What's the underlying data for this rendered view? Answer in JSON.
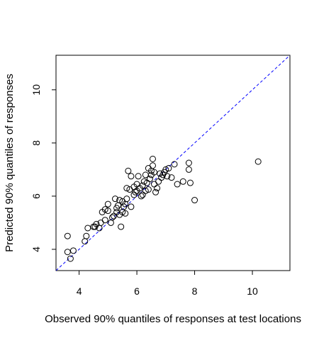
{
  "chart_data": {
    "type": "scatter",
    "title": "",
    "xlabel": "Observed 90% quantiles of responses at test locations",
    "ylabel": "Predicted 90% quantiles of responses",
    "xlim": [
      3.2,
      11.3
    ],
    "ylim": [
      3.2,
      11.3
    ],
    "xticks": [
      4,
      6,
      8,
      10
    ],
    "yticks": [
      4,
      6,
      8,
      10
    ],
    "grid": false,
    "reference_line": {
      "type": "identity",
      "slope": 1,
      "intercept": 0,
      "style": "dashed",
      "color": "#0000ff"
    },
    "colors": {
      "points": "#000000",
      "reference_line": "#0000ff",
      "frame": "#000000"
    },
    "points": [
      {
        "x": 3.6,
        "y": 4.5
      },
      {
        "x": 3.6,
        "y": 3.9
      },
      {
        "x": 3.7,
        "y": 3.65
      },
      {
        "x": 3.8,
        "y": 3.95
      },
      {
        "x": 4.2,
        "y": 4.3
      },
      {
        "x": 4.25,
        "y": 4.5
      },
      {
        "x": 4.3,
        "y": 4.8
      },
      {
        "x": 4.5,
        "y": 4.85
      },
      {
        "x": 4.55,
        "y": 4.85
      },
      {
        "x": 4.6,
        "y": 4.95
      },
      {
        "x": 4.7,
        "y": 4.8
      },
      {
        "x": 4.75,
        "y": 5.0
      },
      {
        "x": 4.8,
        "y": 5.4
      },
      {
        "x": 4.9,
        "y": 5.1
      },
      {
        "x": 4.9,
        "y": 5.5
      },
      {
        "x": 5.0,
        "y": 5.45
      },
      {
        "x": 5.0,
        "y": 5.7
      },
      {
        "x": 5.1,
        "y": 5.0
      },
      {
        "x": 5.15,
        "y": 5.2
      },
      {
        "x": 5.2,
        "y": 5.25
      },
      {
        "x": 5.25,
        "y": 5.9
      },
      {
        "x": 5.3,
        "y": 5.4
      },
      {
        "x": 5.3,
        "y": 5.55
      },
      {
        "x": 5.35,
        "y": 5.65
      },
      {
        "x": 5.4,
        "y": 5.3
      },
      {
        "x": 5.4,
        "y": 5.85
      },
      {
        "x": 5.45,
        "y": 4.85
      },
      {
        "x": 5.5,
        "y": 5.4
      },
      {
        "x": 5.5,
        "y": 5.8
      },
      {
        "x": 5.55,
        "y": 5.6
      },
      {
        "x": 5.6,
        "y": 5.7
      },
      {
        "x": 5.6,
        "y": 5.35
      },
      {
        "x": 5.65,
        "y": 5.9
      },
      {
        "x": 5.65,
        "y": 6.3
      },
      {
        "x": 5.7,
        "y": 6.95
      },
      {
        "x": 5.75,
        "y": 6.25
      },
      {
        "x": 5.8,
        "y": 6.75
      },
      {
        "x": 5.8,
        "y": 5.6
      },
      {
        "x": 5.9,
        "y": 6.05
      },
      {
        "x": 5.9,
        "y": 6.35
      },
      {
        "x": 5.95,
        "y": 6.15
      },
      {
        "x": 6.0,
        "y": 6.2
      },
      {
        "x": 6.0,
        "y": 6.45
      },
      {
        "x": 6.05,
        "y": 6.75
      },
      {
        "x": 6.1,
        "y": 6.3
      },
      {
        "x": 6.15,
        "y": 6.0
      },
      {
        "x": 6.2,
        "y": 6.05
      },
      {
        "x": 6.2,
        "y": 6.4
      },
      {
        "x": 6.25,
        "y": 6.55
      },
      {
        "x": 6.3,
        "y": 6.8
      },
      {
        "x": 6.3,
        "y": 6.2
      },
      {
        "x": 6.35,
        "y": 6.5
      },
      {
        "x": 6.4,
        "y": 7.05
      },
      {
        "x": 6.4,
        "y": 6.25
      },
      {
        "x": 6.45,
        "y": 6.65
      },
      {
        "x": 6.5,
        "y": 6.95
      },
      {
        "x": 6.5,
        "y": 6.8
      },
      {
        "x": 6.55,
        "y": 7.4
      },
      {
        "x": 6.55,
        "y": 7.15
      },
      {
        "x": 6.6,
        "y": 6.9
      },
      {
        "x": 6.6,
        "y": 6.45
      },
      {
        "x": 6.65,
        "y": 6.15
      },
      {
        "x": 6.7,
        "y": 6.3
      },
      {
        "x": 6.75,
        "y": 6.55
      },
      {
        "x": 6.8,
        "y": 6.85
      },
      {
        "x": 6.85,
        "y": 6.7
      },
      {
        "x": 6.9,
        "y": 6.8
      },
      {
        "x": 6.95,
        "y": 6.9
      },
      {
        "x": 7.0,
        "y": 7.0
      },
      {
        "x": 7.05,
        "y": 6.75
      },
      {
        "x": 7.1,
        "y": 7.05
      },
      {
        "x": 7.2,
        "y": 6.7
      },
      {
        "x": 7.3,
        "y": 7.2
      },
      {
        "x": 7.4,
        "y": 6.45
      },
      {
        "x": 7.6,
        "y": 6.55
      },
      {
        "x": 7.8,
        "y": 7.25
      },
      {
        "x": 7.8,
        "y": 7.0
      },
      {
        "x": 7.85,
        "y": 6.5
      },
      {
        "x": 8.0,
        "y": 5.85
      },
      {
        "x": 10.2,
        "y": 7.3
      }
    ]
  }
}
